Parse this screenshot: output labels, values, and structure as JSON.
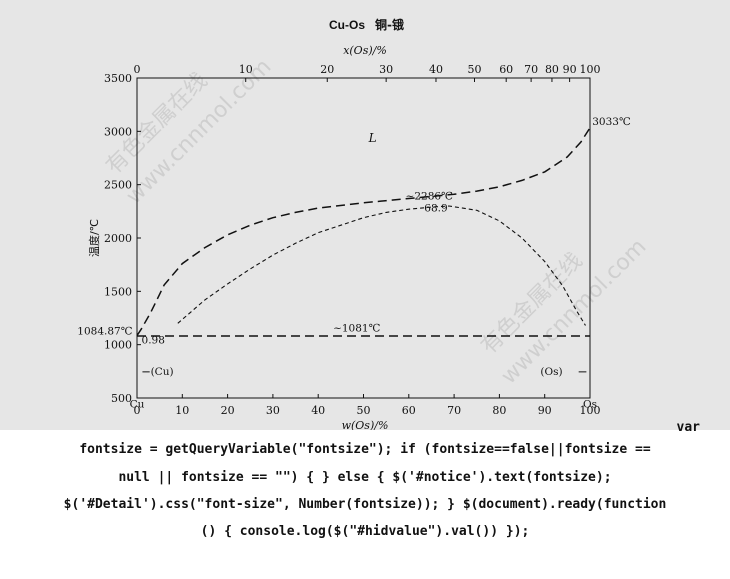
{
  "chart_data": {
    "type": "line",
    "title": "Cu-Os",
    "title_cn": "铜-锇",
    "x_top_label": "x(Os)/%",
    "x_bottom_label": "w(Os)/%",
    "ylabel": "温度/℃",
    "ylim": [
      500,
      3500
    ],
    "xlim": [
      0,
      100
    ],
    "y_ticks": [
      "3500",
      "3000",
      "2500",
      "2000",
      "1500",
      "1000",
      "500"
    ],
    "y_tick_values": [
      3500,
      3000,
      2500,
      2000,
      1500,
      1000,
      500
    ],
    "x_bottom_ticks": [
      "0",
      "10",
      "20",
      "30",
      "40",
      "50",
      "60",
      "70",
      "80",
      "90",
      "100"
    ],
    "x_top_ticks": [
      {
        "label": "0",
        "w": 0
      },
      {
        "label": "10",
        "w": 24
      },
      {
        "label": "20",
        "w": 42
      },
      {
        "label": "30",
        "w": 55
      },
      {
        "label": "40",
        "w": 66
      },
      {
        "label": "50",
        "w": 74.5
      },
      {
        "label": "60",
        "w": 81.5
      },
      {
        "label": "70",
        "w": 87
      },
      {
        "label": "80",
        "w": 91.6
      },
      {
        "label": "90",
        "w": 95.5
      },
      {
        "label": "100",
        "w": 100
      }
    ],
    "series": [
      {
        "style": "dashed",
        "points": [
          [
            0,
            1084.87
          ],
          [
            1,
            1150
          ],
          [
            3,
            1300
          ],
          [
            6,
            1560
          ],
          [
            10,
            1760
          ],
          [
            15,
            1910
          ],
          [
            20,
            2030
          ],
          [
            25,
            2120
          ],
          [
            30,
            2190
          ],
          [
            35,
            2240
          ],
          [
            40,
            2280
          ],
          [
            50,
            2330
          ],
          [
            60,
            2370
          ],
          [
            70,
            2410
          ],
          [
            75,
            2440
          ],
          [
            80,
            2480
          ],
          [
            85,
            2540
          ],
          [
            90,
            2620
          ],
          [
            95,
            2760
          ],
          [
            98,
            2900
          ],
          [
            100,
            3033
          ]
        ]
      },
      {
        "style": "dotted",
        "points": [
          [
            9,
            1200
          ],
          [
            15,
            1420
          ],
          [
            20,
            1570
          ],
          [
            25,
            1710
          ],
          [
            30,
            1840
          ],
          [
            35,
            1950
          ],
          [
            40,
            2050
          ],
          [
            45,
            2120
          ],
          [
            50,
            2190
          ],
          [
            55,
            2240
          ],
          [
            60,
            2270
          ],
          [
            65,
            2290
          ],
          [
            68.9,
            2300
          ],
          [
            75,
            2260
          ],
          [
            80,
            2160
          ],
          [
            85,
            2000
          ],
          [
            90,
            1780
          ],
          [
            94,
            1550
          ],
          [
            97,
            1320
          ],
          [
            99,
            1180
          ]
        ]
      },
      {
        "style": "dashed",
        "points": [
          [
            0,
            1081
          ],
          [
            100,
            1081
          ]
        ]
      }
    ],
    "annotations": [
      {
        "text": "L",
        "x": 52,
        "y": 2900
      },
      {
        "text": "3033℃",
        "x": 100.5,
        "y": 3060
      },
      {
        "text": "~2286℃",
        "x": 64.5,
        "y": 2360
      },
      {
        "text": "68.9",
        "x": 66,
        "y": 2250
      },
      {
        "text": "~1081℃",
        "x": 48.5,
        "y": 1125
      },
      {
        "text": "1084.87℃",
        "x": -1,
        "y": 1095
      },
      {
        "text": "0.98",
        "x": 1,
        "y": 1010
      },
      {
        "text": "(Cu)",
        "x": 3,
        "y": 715
      },
      {
        "text": "(Os)",
        "x": 91.5,
        "y": 715
      },
      {
        "text": "Cu",
        "x": 0,
        "y": 410
      },
      {
        "text": "Os",
        "x": 100,
        "y": 410
      }
    ]
  },
  "watermarks": [
    "有色金属在线",
    "www.cnnmol.com"
  ],
  "code_text": {
    "var_word": "var",
    "lines": [
      "fontsize = getQueryVariable(\"fontsize\"); if (fontsize==false||fontsize ==",
      "null || fontsize == \"\") { } else { $('#notice').text(fontsize);",
      "$('#Detail').css(\"font-size\", Number(fontsize)); } $(document).ready(function",
      "() { console.log($(\"#hidvalue\").val()) });"
    ]
  }
}
